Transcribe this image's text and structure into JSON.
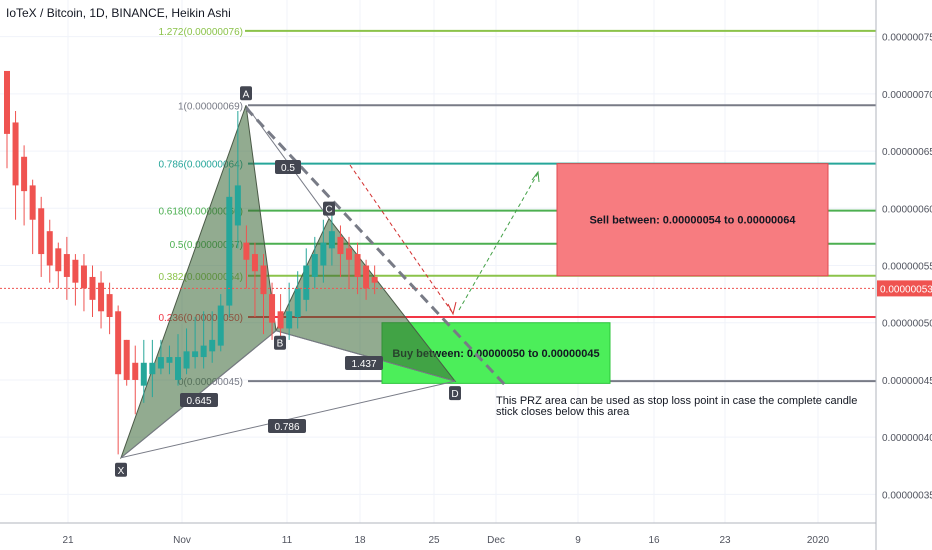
{
  "header": {
    "title": "IoTeX / Bitcoin, 1D, BINANCE, Heikin Ashi"
  },
  "chart_data": {
    "type": "candlestick",
    "symbol": "IoTeX / Bitcoin",
    "interval": "1D",
    "exchange": "BINANCE",
    "style": "Heikin Ashi",
    "x_ticks": [
      "21",
      "Nov",
      "11",
      "18",
      "25",
      "Dec",
      "9",
      "16",
      "23",
      "2020"
    ],
    "y_ticks": [
      "0.00000035",
      "0.00000040",
      "0.00000045",
      "0.00000050",
      "0.00000055",
      "0.00000060",
      "0.00000065",
      "0.00000070",
      "0.00000075"
    ],
    "ylim": [
      3.25e-07,
      7.82e-07
    ],
    "grid": true,
    "last_price": "0.00000053",
    "colors": {
      "up": "#26a69a",
      "down": "#ef5350",
      "bg": "#ffffff",
      "grid": "#f0f3fa"
    },
    "candles": [
      {
        "o": 72.0,
        "c": 66.5,
        "h": 72.0,
        "l": 63.5
      },
      {
        "o": 67.5,
        "c": 62.0,
        "h": 68.5,
        "l": 59.0
      },
      {
        "o": 64.5,
        "c": 61.5,
        "h": 65.5,
        "l": 58.5
      },
      {
        "o": 62.0,
        "c": 59.0,
        "h": 62.5,
        "l": 56.0
      },
      {
        "o": 60.0,
        "c": 56.0,
        "h": 61.0,
        "l": 54.0
      },
      {
        "o": 58.0,
        "c": 55.0,
        "h": 59.0,
        "l": 53.5
      },
      {
        "o": 56.5,
        "c": 54.5,
        "h": 57.0,
        "l": 53.0
      },
      {
        "o": 56.0,
        "c": 54.0,
        "h": 57.5,
        "l": 52.0
      },
      {
        "o": 55.5,
        "c": 53.5,
        "h": 56.0,
        "l": 51.5
      },
      {
        "o": 55.0,
        "c": 53.0,
        "h": 56.0,
        "l": 51.0
      },
      {
        "o": 54.0,
        "c": 52.0,
        "h": 55.0,
        "l": 50.5
      },
      {
        "o": 53.5,
        "c": 51.0,
        "h": 54.5,
        "l": 49.5
      },
      {
        "o": 52.5,
        "c": 50.5,
        "h": 53.5,
        "l": 49.0
      },
      {
        "o": 51.0,
        "c": 45.5,
        "h": 51.5,
        "l": 38.5
      },
      {
        "o": 48.5,
        "c": 45.0,
        "h": 48.5,
        "l": 44.5
      },
      {
        "o": 46.5,
        "c": 45.0,
        "h": 48.0,
        "l": 42.0
      },
      {
        "o": 44.5,
        "c": 46.5,
        "h": 48.5,
        "l": 43.0
      },
      {
        "o": 45.5,
        "c": 46.5,
        "h": 48.5,
        "l": 43.5
      },
      {
        "o": 46.0,
        "c": 47.0,
        "h": 48.5,
        "l": 45.5
      },
      {
        "o": 46.5,
        "c": 47.0,
        "h": 48.0,
        "l": 45.5
      },
      {
        "o": 45.0,
        "c": 47.0,
        "h": 49.0,
        "l": 44.5
      },
      {
        "o": 46.0,
        "c": 47.5,
        "h": 49.5,
        "l": 45.5
      },
      {
        "o": 47.0,
        "c": 47.5,
        "h": 50.5,
        "l": 46.0
      },
      {
        "o": 47.0,
        "c": 48.0,
        "h": 51.0,
        "l": 46.0
      },
      {
        "o": 47.5,
        "c": 48.5,
        "h": 51.0,
        "l": 46.5
      },
      {
        "o": 48.0,
        "c": 51.5,
        "h": 52.5,
        "l": 47.5
      },
      {
        "o": 51.5,
        "c": 61.0,
        "h": 63.5,
        "l": 50.5
      },
      {
        "o": 58.5,
        "c": 62.0,
        "h": 68.5,
        "l": 56.5
      },
      {
        "o": 57.0,
        "c": 55.5,
        "h": 58.5,
        "l": 53.0
      },
      {
        "o": 56.0,
        "c": 54.5,
        "h": 57.0,
        "l": 50.5
      },
      {
        "o": 55.0,
        "c": 52.5,
        "h": 56.0,
        "l": 49.0
      },
      {
        "o": 52.5,
        "c": 50.0,
        "h": 53.5,
        "l": 48.5
      },
      {
        "o": 51.0,
        "c": 49.5,
        "h": 52.5,
        "l": 48.0
      },
      {
        "o": 49.5,
        "c": 51.0,
        "h": 53.5,
        "l": 48.5
      },
      {
        "o": 50.5,
        "c": 53.0,
        "h": 54.5,
        "l": 49.5
      },
      {
        "o": 52.0,
        "c": 55.0,
        "h": 56.5,
        "l": 51.0
      },
      {
        "o": 54.0,
        "c": 56.0,
        "h": 57.5,
        "l": 53.0
      },
      {
        "o": 55.0,
        "c": 57.0,
        "h": 59.0,
        "l": 53.5
      },
      {
        "o": 56.5,
        "c": 58.0,
        "h": 59.5,
        "l": 55.0
      },
      {
        "o": 57.5,
        "c": 56.0,
        "h": 58.5,
        "l": 54.0
      },
      {
        "o": 56.5,
        "c": 55.5,
        "h": 57.5,
        "l": 53.0
      },
      {
        "o": 56.0,
        "c": 54.0,
        "h": 57.0,
        "l": 52.5
      },
      {
        "o": 55.0,
        "c": 53.0,
        "h": 55.5,
        "l": 52.0
      },
      {
        "o": 54.0,
        "c": 53.5,
        "h": 55.0,
        "l": 52.5
      }
    ],
    "fib_levels": [
      {
        "label": "1.272(0.00000076)",
        "value": 7.55e-07,
        "color": "#8bc34a"
      },
      {
        "label": "1(0.00000069)",
        "value": 6.9e-07,
        "color": "#787b86"
      },
      {
        "label": "0.786(0.00000064)",
        "value": 6.39e-07,
        "color": "#26a69a"
      },
      {
        "label": "0.618(0.00000060)",
        "value": 5.98e-07,
        "color": "#4caf50"
      },
      {
        "label": "0.5(0.00000057)",
        "value": 5.69e-07,
        "color": "#4caf50"
      },
      {
        "label": "0.382(0.00000054)",
        "value": 5.41e-07,
        "color": "#8bc34a"
      },
      {
        "label": "0.236(0.00000050)",
        "value": 5.05e-07,
        "color": "#f23645"
      },
      {
        "label": "0(0.00000045)",
        "value": 4.49e-07,
        "color": "#787b86"
      }
    ],
    "pattern": {
      "points": [
        {
          "name": "X",
          "value": 3.82e-07
        },
        {
          "name": "A",
          "value": 6.9e-07
        },
        {
          "name": "B",
          "value": 4.93e-07
        },
        {
          "name": "C",
          "value": 5.91e-07
        },
        {
          "name": "D",
          "value": 4.49e-07
        }
      ],
      "ratios": [
        "0.645",
        "0.5",
        "1.437",
        "0.786"
      ]
    },
    "zones": [
      {
        "name": "sell",
        "text": "Sell between: 0.00000054 to 0.00000064",
        "top": 6.39e-07,
        "bottom": 5.41e-07,
        "color": "#f77c80"
      },
      {
        "name": "buy",
        "text": "Buy between: 0.00000050 to 0.00000045",
        "top": 5e-07,
        "bottom": 4.47e-07,
        "color": "#4cee5a"
      }
    ],
    "annotation": "This PRZ area can be used as stop loss point in case the complete candle stick closes below this area"
  }
}
